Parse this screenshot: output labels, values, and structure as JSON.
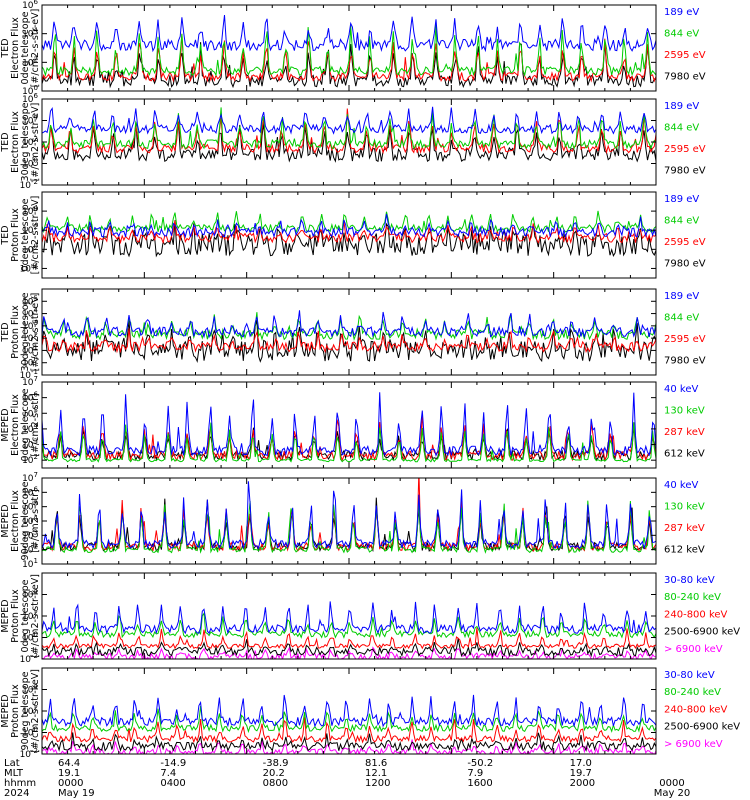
{
  "chart_data": {
    "type": "line",
    "panels": [
      {
        "ylabel": [
          "TED",
          "Electron Flux",
          "0deg telescope",
          "[#/cm2-s-str-eV]"
        ],
        "ytick_exps": [
          6,
          4,
          2,
          0
        ],
        "ylim_exp": [
          0,
          6
        ],
        "series": [
          {
            "name": "7980 eV",
            "color": "#000000",
            "base": 0.7,
            "spike": 2.6,
            "noise": 0.4
          },
          {
            "name": "2595 eV",
            "color": "#ff0000",
            "base": 1.0,
            "spike": 2.8,
            "noise": 0.3
          },
          {
            "name": "844 eV",
            "color": "#00cc00",
            "base": 1.4,
            "spike": 3.0,
            "noise": 0.3
          },
          {
            "name": "189 eV",
            "color": "#0000ff",
            "base": 3.2,
            "spike": 2.0,
            "noise": 0.4
          }
        ]
      },
      {
        "ylabel": [
          "TED",
          "Electron Flux",
          "30deg telescope",
          "[#/cm2-s-str-eV]"
        ],
        "ytick_exps": [
          6,
          4,
          2,
          0,
          -2
        ],
        "ylim_exp": [
          -2,
          6
        ],
        "series": [
          {
            "name": "7980 eV",
            "color": "#000000",
            "base": 0.8,
            "spike": 3.0,
            "noise": 0.6
          },
          {
            "name": "2595 eV",
            "color": "#ff0000",
            "base": 1.4,
            "spike": 3.2,
            "noise": 0.4
          },
          {
            "name": "844 eV",
            "color": "#00cc00",
            "base": 1.8,
            "spike": 3.2,
            "noise": 0.4
          },
          {
            "name": "189 eV",
            "color": "#0000ff",
            "base": 3.2,
            "spike": 2.2,
            "noise": 0.4
          }
        ]
      },
      {
        "ylabel": [
          "TED",
          "Proton Flux",
          "0deg telescope",
          "[#/cm2-s-str-eV]"
        ],
        "ytick_exps": [
          4,
          2,
          0,
          -2
        ],
        "ylim_exp": [
          -3,
          6
        ],
        "series": [
          {
            "name": "7980 eV",
            "color": "#000000",
            "base": 0.5,
            "spike": 1.8,
            "noise": 1.2
          },
          {
            "name": "2595 eV",
            "color": "#ff0000",
            "base": 1.2,
            "spike": 1.4,
            "noise": 0.5
          },
          {
            "name": "844 eV",
            "color": "#00cc00",
            "base": 2.2,
            "spike": 1.8,
            "noise": 0.4
          },
          {
            "name": "189 eV",
            "color": "#0000ff",
            "base": 1.8,
            "spike": 1.4,
            "noise": 0.5
          }
        ]
      },
      {
        "ylabel": [
          "TED",
          "Proton Flux",
          "30deg telescope",
          "[#/cm2-s-str-eV]"
        ],
        "ytick_exps": [
          5,
          4,
          3,
          2,
          1,
          0,
          -1
        ],
        "ylim_exp": [
          -1,
          6
        ],
        "series": [
          {
            "name": "7980 eV",
            "color": "#000000",
            "base": 1.0,
            "spike": 1.8,
            "noise": 0.9
          },
          {
            "name": "2595 eV",
            "color": "#ff0000",
            "base": 1.3,
            "spike": 1.2,
            "noise": 0.4
          },
          {
            "name": "844 eV",
            "color": "#00cc00",
            "base": 2.3,
            "spike": 1.6,
            "noise": 0.4
          },
          {
            "name": "189 eV",
            "color": "#0000ff",
            "base": 2.5,
            "spike": 1.4,
            "noise": 0.4
          }
        ]
      },
      {
        "ylabel": [
          "MEPED",
          "Electron Flux",
          "0deg telescope",
          "[#/cm2-s-str]"
        ],
        "ytick_exps": [
          7,
          6,
          5,
          4,
          3,
          2
        ],
        "ylim_exp": [
          1.5,
          7
        ],
        "series": [
          {
            "name": "612 keV",
            "color": "#000000",
            "base": 2.3,
            "spike": 1.8,
            "noise": 0.3
          },
          {
            "name": "287 keV",
            "color": "#ff0000",
            "base": 2.3,
            "spike": 2.2,
            "noise": 0.3
          },
          {
            "name": "130 keV",
            "color": "#00cc00",
            "base": 2.0,
            "spike": 2.4,
            "noise": 0.1
          },
          {
            "name": "40 keV",
            "color": "#0000ff",
            "base": 2.6,
            "spike": 3.4,
            "noise": 0.3
          }
        ]
      },
      {
        "ylabel": [
          "MEPED",
          "Electron Flux",
          "90deg telescope",
          "[#/cm2-s-str]"
        ],
        "ytick_exps": [
          7,
          6,
          5,
          4,
          3,
          2,
          1
        ],
        "ylim_exp": [
          1,
          7
        ],
        "series": [
          {
            "name": "612 keV",
            "color": "#000000",
            "base": 2.2,
            "spike": 3.2,
            "noise": 0.3
          },
          {
            "name": "287 keV",
            "color": "#ff0000",
            "base": 2.2,
            "spike": 3.4,
            "noise": 0.3
          },
          {
            "name": "130 keV",
            "color": "#00cc00",
            "base": 2.0,
            "spike": 3.5,
            "noise": 0.2
          },
          {
            "name": "40 keV",
            "color": "#0000ff",
            "base": 2.4,
            "spike": 3.8,
            "noise": 0.3
          }
        ]
      },
      {
        "ylabel": [
          "MEPED",
          "Proton Flux",
          "0deg telescope",
          "[#/cm2-s-str-keV]"
        ],
        "ytick_exps": [
          4,
          2,
          0,
          -2
        ],
        "ylim_exp": [
          -2,
          6
        ],
        "series": [
          {
            "name": "> 6900 keV",
            "color": "#ff00ff",
            "base": -1.8,
            "spike": 0.8,
            "noise": 0.3
          },
          {
            "name": "2500-6900 keV",
            "color": "#000000",
            "base": -1.3,
            "spike": 0.8,
            "noise": 0.4
          },
          {
            "name": "240-800 keV",
            "color": "#ff0000",
            "base": -0.8,
            "spike": 1.4,
            "noise": 0.2
          },
          {
            "name": "80-240 keV",
            "color": "#00cc00",
            "base": 0.3,
            "spike": 1.8,
            "noise": 0.3
          },
          {
            "name": "30-80 keV",
            "color": "#0000ff",
            "base": 0.8,
            "spike": 2.8,
            "noise": 0.4
          }
        ]
      },
      {
        "ylabel": [
          "MEPED",
          "Proton Flux",
          "90deg telescope",
          "[#/cm2-s-str-keV]"
        ],
        "ytick_exps": [
          4,
          2,
          0,
          -2
        ],
        "ylim_exp": [
          -2,
          6
        ],
        "series": [
          {
            "name": "> 6900 keV",
            "color": "#ff00ff",
            "base": -1.8,
            "spike": 0.9,
            "noise": 0.3
          },
          {
            "name": "2500-6900 keV",
            "color": "#000000",
            "base": -1.3,
            "spike": 0.9,
            "noise": 0.4
          },
          {
            "name": "240-800 keV",
            "color": "#ff0000",
            "base": -0.6,
            "spike": 1.6,
            "noise": 0.3
          },
          {
            "name": "80-240 keV",
            "color": "#00cc00",
            "base": 0.4,
            "spike": 1.8,
            "noise": 0.3
          },
          {
            "name": "30-80 keV",
            "color": "#0000ff",
            "base": 1.0,
            "spike": 2.6,
            "noise": 0.4
          }
        ]
      }
    ],
    "x_axis": {
      "row_labels": [
        "Lat",
        "MLT",
        "hhmm",
        "2024"
      ],
      "columns": [
        {
          "lat": "64.4",
          "mlt": "19.1",
          "hhmm": "0000",
          "date": "May 19"
        },
        {
          "lat": "-14.9",
          "mlt": "7.4",
          "hhmm": "0400",
          "date": ""
        },
        {
          "lat": "-38.9",
          "mlt": "20.2",
          "hhmm": "0800",
          "date": ""
        },
        {
          "lat": "81.6",
          "mlt": "12.1",
          "hhmm": "1200",
          "date": ""
        },
        {
          "lat": "-50.2",
          "mlt": "7.9",
          "hhmm": "1600",
          "date": ""
        },
        {
          "lat": "17.0",
          "mlt": "19.7",
          "hhmm": "2000",
          "date": ""
        },
        {
          "lat": "",
          "mlt": "",
          "hhmm": "0000",
          "date": "May 20"
        }
      ],
      "hours": 24,
      "orbits": 14.5
    }
  }
}
